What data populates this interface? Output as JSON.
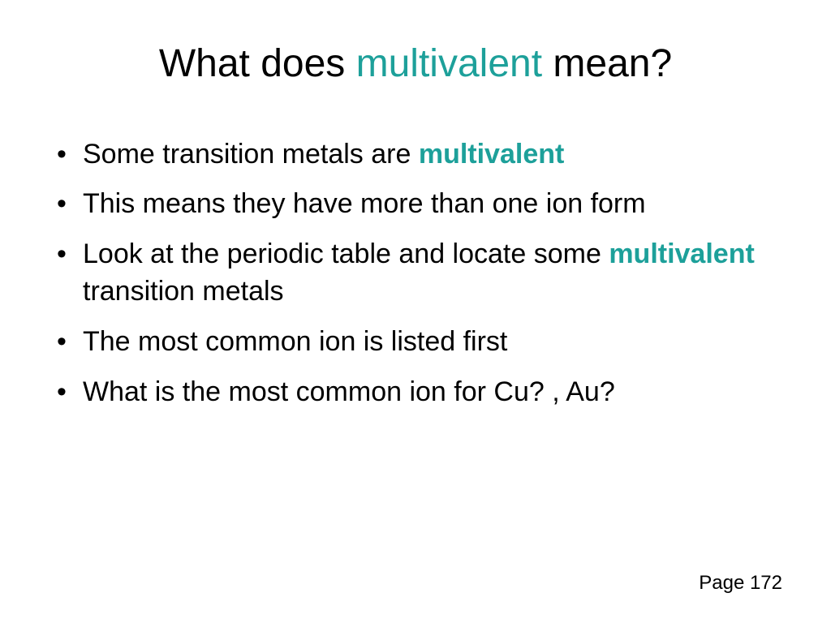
{
  "slide": {
    "title": {
      "part1": "What does ",
      "highlight": "multivalent",
      "part2": " mean?"
    },
    "bullets": [
      {
        "parts": [
          {
            "text": "Some transition metals are ",
            "style": "normal"
          },
          {
            "text": "multivalent",
            "style": "highlight-bold"
          }
        ]
      },
      {
        "parts": [
          {
            "text": "This means they have more than one ion form",
            "style": "normal"
          }
        ]
      },
      {
        "parts": [
          {
            "text": "Look at the periodic table and locate some ",
            "style": "normal"
          },
          {
            "text": "multivalent",
            "style": "highlight-bold"
          },
          {
            "text": " transition metals",
            "style": "normal"
          }
        ]
      },
      {
        "parts": [
          {
            "text": "The most common ion is listed first",
            "style": "normal"
          }
        ]
      },
      {
        "parts": [
          {
            "text": "What is the most common ion for Cu? , Au?",
            "style": "normal"
          }
        ]
      }
    ],
    "page_label": "Page 172"
  },
  "colors": {
    "highlight": "#1da09a",
    "text": "#000000",
    "background": "#ffffff"
  },
  "typography": {
    "title_fontsize": 48,
    "bullet_fontsize": 34,
    "page_fontsize": 24,
    "font_family": "Arial"
  }
}
